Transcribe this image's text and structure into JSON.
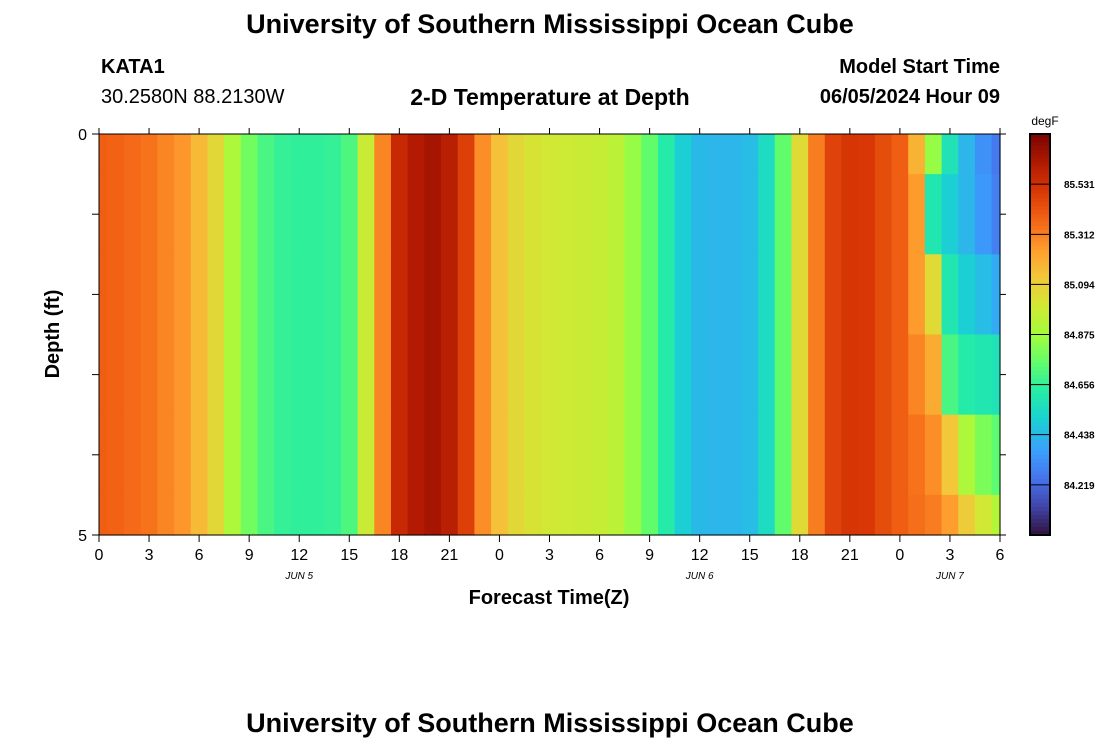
{
  "header": {
    "title": "University of Southern Mississippi Ocean Cube",
    "station": "KATA1",
    "coordinates": "30.2580N  88.2130W",
    "model_start_label": "Model Start Time",
    "model_start_value": "06/05/2024 Hour 09",
    "footer_title": "University of Southern Mississippi Ocean Cube"
  },
  "chart_data": {
    "type": "heatmap",
    "title": "2-D Temperature at Depth",
    "xlabel": "Forecast Time(Z)",
    "ylabel": "Depth (ft)",
    "x_range_hours": [
      0,
      54
    ],
    "x_ticks": [
      "0",
      "3",
      "6",
      "9",
      "12",
      "15",
      "18",
      "21",
      "0",
      "3",
      "6",
      "9",
      "12",
      "15",
      "18",
      "21",
      "0",
      "3",
      "6"
    ],
    "date_labels": [
      {
        "hour": 12,
        "text": "JUN 5"
      },
      {
        "hour": 36,
        "text": "JUN 6"
      },
      {
        "hour": 51,
        "text": "JUN 7"
      }
    ],
    "y_range_ft": [
      0,
      5
    ],
    "y_tick_labels": [
      {
        "value": 0,
        "text": "0"
      },
      {
        "value": 5,
        "text": "5"
      }
    ],
    "y_minor_ticks": [
      1,
      2,
      3,
      4
    ],
    "colorbar": {
      "unit": "degF",
      "min": 84.0,
      "max": 85.75,
      "ticks": [
        "85.531",
        "85.312",
        "85.094",
        "84.875",
        "84.656",
        "84.438",
        "84.219"
      ]
    },
    "hours": [
      0,
      1,
      2,
      3,
      4,
      5,
      6,
      7,
      8,
      9,
      10,
      11,
      12,
      13,
      14,
      15,
      16,
      17,
      18,
      19,
      20,
      21,
      22,
      23,
      24,
      25,
      26,
      27,
      28,
      29,
      30,
      31,
      32,
      33,
      34,
      35,
      36,
      37,
      38,
      39,
      40,
      41,
      42,
      43,
      44,
      45,
      46,
      47,
      48,
      49,
      50,
      51,
      52,
      53,
      54
    ],
    "depth_bins_ft": [
      0,
      1,
      2,
      3,
      4,
      5
    ],
    "rows": [
      {
        "depth_from": 0,
        "depth_to": 0.5,
        "values": [
          85.39,
          85.38,
          85.36,
          85.34,
          85.3,
          85.26,
          85.16,
          85.06,
          84.9,
          84.78,
          84.7,
          84.66,
          84.65,
          84.65,
          84.66,
          84.71,
          84.98,
          85.3,
          85.56,
          85.62,
          85.65,
          85.6,
          85.48,
          85.28,
          85.14,
          85.06,
          85.02,
          85.0,
          84.99,
          84.98,
          84.97,
          84.94,
          84.85,
          84.75,
          84.62,
          84.5,
          84.44,
          84.43,
          84.43,
          84.45,
          84.55,
          84.75,
          85.05,
          85.32,
          85.47,
          85.51,
          85.5,
          85.44,
          85.39,
          85.18,
          84.85,
          84.58,
          84.43,
          84.33,
          84.26
        ]
      },
      {
        "depth_from": 0.5,
        "depth_to": 1.5,
        "values": [
          85.39,
          85.38,
          85.36,
          85.34,
          85.3,
          85.26,
          85.16,
          85.06,
          84.9,
          84.78,
          84.7,
          84.66,
          84.65,
          84.65,
          84.66,
          84.71,
          84.98,
          85.3,
          85.56,
          85.62,
          85.65,
          85.6,
          85.48,
          85.28,
          85.14,
          85.06,
          85.02,
          85.0,
          84.99,
          84.98,
          84.97,
          84.94,
          84.85,
          84.75,
          84.62,
          84.5,
          84.44,
          84.43,
          84.43,
          84.45,
          84.55,
          84.75,
          85.05,
          85.32,
          85.47,
          85.51,
          85.5,
          85.44,
          85.39,
          85.25,
          84.6,
          84.5,
          84.43,
          84.35,
          84.28
        ]
      },
      {
        "depth_from": 1.5,
        "depth_to": 2.5,
        "values": [
          85.39,
          85.38,
          85.36,
          85.34,
          85.3,
          85.26,
          85.16,
          85.06,
          84.9,
          84.78,
          84.7,
          84.66,
          84.65,
          84.65,
          84.66,
          84.71,
          84.98,
          85.3,
          85.56,
          85.62,
          85.65,
          85.6,
          85.48,
          85.28,
          85.14,
          85.06,
          85.02,
          85.0,
          84.99,
          84.98,
          84.97,
          84.94,
          84.85,
          84.75,
          84.62,
          84.5,
          84.44,
          84.43,
          84.43,
          84.45,
          84.55,
          84.75,
          85.05,
          85.32,
          85.47,
          85.51,
          85.5,
          85.44,
          85.39,
          85.25,
          85.05,
          84.6,
          84.5,
          84.45,
          84.4
        ]
      },
      {
        "depth_from": 2.5,
        "depth_to": 3.5,
        "values": [
          85.39,
          85.38,
          85.36,
          85.34,
          85.3,
          85.26,
          85.16,
          85.06,
          84.9,
          84.78,
          84.7,
          84.66,
          84.65,
          84.65,
          84.66,
          84.71,
          84.98,
          85.3,
          85.56,
          85.62,
          85.65,
          85.6,
          85.48,
          85.28,
          85.14,
          85.06,
          85.02,
          85.0,
          84.99,
          84.98,
          84.97,
          84.94,
          84.85,
          84.75,
          84.62,
          84.5,
          84.44,
          84.43,
          84.43,
          84.45,
          84.55,
          84.75,
          85.05,
          85.32,
          85.47,
          85.51,
          85.5,
          85.44,
          85.39,
          85.3,
          85.2,
          84.7,
          84.62,
          84.6,
          84.58
        ]
      },
      {
        "depth_from": 3.5,
        "depth_to": 4.5,
        "values": [
          85.39,
          85.38,
          85.36,
          85.34,
          85.3,
          85.26,
          85.16,
          85.06,
          84.9,
          84.78,
          84.7,
          84.66,
          84.65,
          84.65,
          84.66,
          84.71,
          84.98,
          85.3,
          85.56,
          85.62,
          85.65,
          85.6,
          85.48,
          85.28,
          85.14,
          85.06,
          85.02,
          85.0,
          84.99,
          84.98,
          84.97,
          84.94,
          84.85,
          84.75,
          84.62,
          84.5,
          84.44,
          84.43,
          84.43,
          84.45,
          84.55,
          84.75,
          85.05,
          85.32,
          85.47,
          85.51,
          85.5,
          85.44,
          85.39,
          85.34,
          85.28,
          85.12,
          84.9,
          84.8,
          84.74
        ]
      },
      {
        "depth_from": 4.5,
        "depth_to": 5,
        "values": [
          85.39,
          85.38,
          85.36,
          85.34,
          85.3,
          85.26,
          85.16,
          85.06,
          84.9,
          84.78,
          84.7,
          84.66,
          84.65,
          84.65,
          84.66,
          84.71,
          84.98,
          85.3,
          85.56,
          85.62,
          85.65,
          85.6,
          85.48,
          85.28,
          85.14,
          85.06,
          85.02,
          85.0,
          84.99,
          84.98,
          84.97,
          84.94,
          84.85,
          84.75,
          84.62,
          84.5,
          84.44,
          84.43,
          84.43,
          84.45,
          84.55,
          84.75,
          85.05,
          85.32,
          85.47,
          85.51,
          85.5,
          85.44,
          85.39,
          85.35,
          85.32,
          85.24,
          85.1,
          85.0,
          84.92
        ]
      }
    ],
    "colormap": [
      "#30123b",
      "#4145ab",
      "#4675ed",
      "#39a2fc",
      "#1bcfd4",
      "#24eca6",
      "#61fc6c",
      "#a4fc3b",
      "#d1e834",
      "#f3c63a",
      "#fe9b2d",
      "#f36315",
      "#d93806",
      "#b11901",
      "#7a0402"
    ]
  }
}
